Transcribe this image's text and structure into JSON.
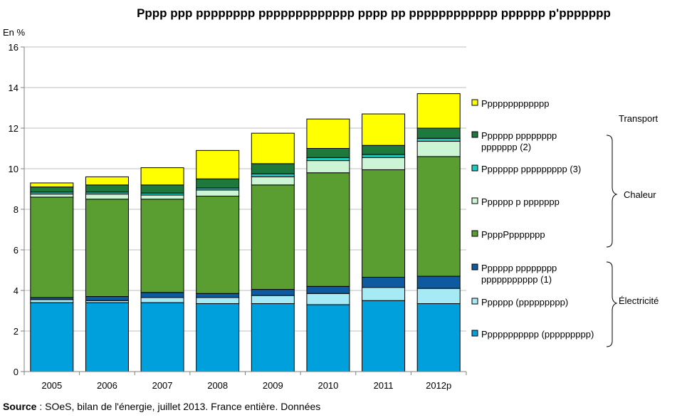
{
  "chart_data": {
    "type": "bar",
    "stacked": true,
    "title": "Pppp ppp pppppppp ppppppppppppp pppp pp pppppppppppp pppppp p'ppppppp",
    "ylabel": "En %",
    "ylim": [
      0,
      16
    ],
    "yticks": [
      "0",
      "2",
      "4",
      "6",
      "8",
      "10",
      "12",
      "14",
      "16"
    ],
    "grid": true,
    "legend_position": "right",
    "categories": [
      "2005",
      "2006",
      "2007",
      "2008",
      "2009",
      "2010",
      "2011",
      "2012p"
    ],
    "series": [
      {
        "name": "Ppppppppppp (ppppppppp)",
        "color": "#00A0DC",
        "values": [
          3.4,
          3.4,
          3.4,
          3.35,
          3.35,
          3.3,
          3.5,
          3.35
        ]
      },
      {
        "name": "Pppppp (ppppppppp)",
        "color": "#A6EAF6",
        "values": [
          0.15,
          0.1,
          0.25,
          0.3,
          0.4,
          0.55,
          0.65,
          0.75
        ]
      },
      {
        "name": "Pppppp pppppppp ppppppppppp (1)",
        "color": "#0E5AA0",
        "values": [
          0.1,
          0.2,
          0.25,
          0.2,
          0.3,
          0.35,
          0.5,
          0.6
        ]
      },
      {
        "name": "PpppPppppppp",
        "color": "#5A9E32",
        "values": [
          4.95,
          4.8,
          4.6,
          4.8,
          5.15,
          5.6,
          5.3,
          5.9
        ]
      },
      {
        "name": "Pppppp p ppppppp",
        "color": "#CCF5D6",
        "values": [
          0.15,
          0.25,
          0.2,
          0.3,
          0.4,
          0.6,
          0.6,
          0.75
        ]
      },
      {
        "name": "Ppppppp ppppppppp (3)",
        "color": "#20C8BE",
        "values": [
          0.1,
          0.1,
          0.1,
          0.1,
          0.15,
          0.15,
          0.15,
          0.15
        ]
      },
      {
        "name": "Pppppp pppppppp ppppppp (2)",
        "color": "#1E7A3C",
        "values": [
          0.25,
          0.35,
          0.4,
          0.45,
          0.5,
          0.45,
          0.45,
          0.5
        ]
      },
      {
        "name": "Ppppppppppppp",
        "color": "#FFFF00",
        "values": [
          0.2,
          0.4,
          0.85,
          1.4,
          1.5,
          1.45,
          1.55,
          1.7
        ]
      }
    ],
    "groups": [
      {
        "label": "Transport"
      },
      {
        "label": "Chaleur"
      },
      {
        "label": "Électricité"
      }
    ]
  },
  "source": {
    "label": "Source",
    "text": " : SOeS, bilan de l'énergie, juillet 2013. France entière. Données"
  }
}
